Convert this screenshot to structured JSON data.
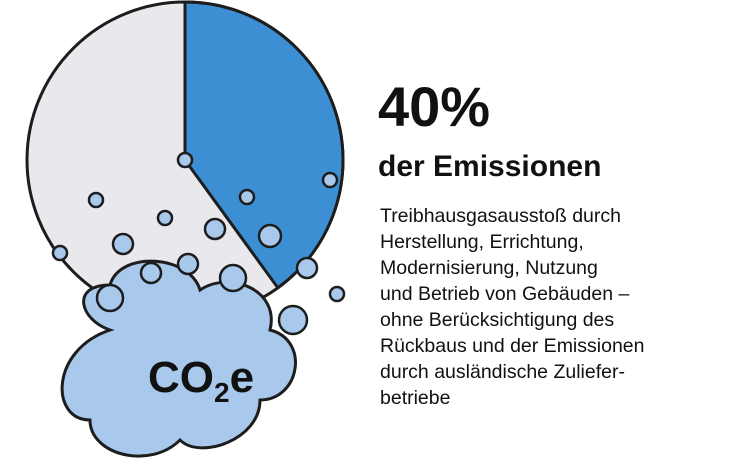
{
  "chart_data": {
    "type": "pie",
    "values": [
      40
    ],
    "value_labels": [
      "40%"
    ],
    "color": "#3d8fd4",
    "subtitle": "der Emissionen",
    "description": [
      "Treibhausgasausstoß durch",
      "Herstellung, Errichtung,",
      "Modernisierung, Nutzung",
      "und Betrieb von Gebäuden –",
      "ohne Berücksichtigung des",
      "Rückbaus und der Emissionen",
      "durch ausländische Zuliefer-",
      "betriebe"
    ],
    "cloud_label": [
      "CO",
      "2",
      "e"
    ]
  }
}
